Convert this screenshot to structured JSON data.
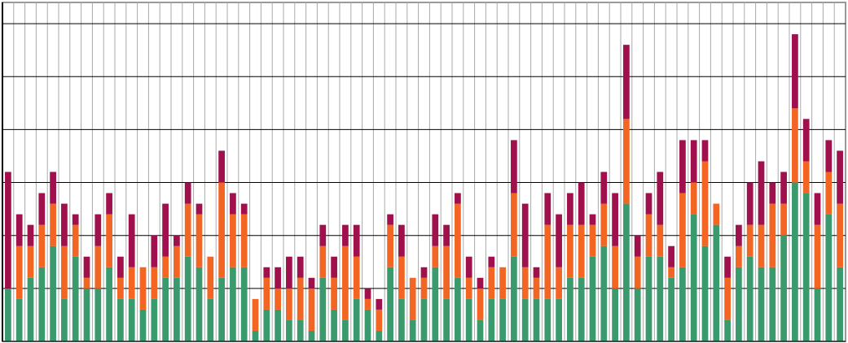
{
  "chart_data": {
    "type": "stacked-bar",
    "series": [
      {
        "color": "#3a9a6e",
        "values": [
          5,
          4,
          6,
          7,
          9,
          4,
          8,
          5,
          5,
          7,
          4,
          4,
          3,
          4,
          6,
          6,
          8,
          7,
          4,
          6,
          7,
          7,
          1,
          3,
          3,
          2,
          2,
          1,
          6,
          3,
          2,
          4,
          3,
          1,
          7,
          4,
          2,
          4,
          7,
          4,
          6,
          4,
          2,
          4,
          4,
          8,
          4,
          4,
          4,
          4,
          6,
          6,
          8,
          9,
          5,
          13,
          5,
          8,
          8,
          6,
          7,
          12,
          9,
          11,
          2,
          7,
          8,
          7,
          7,
          10,
          15,
          14,
          5,
          12,
          7
        ]
      },
      {
        "color": "#f26522",
        "values": [
          0,
          5,
          3,
          4,
          4,
          5,
          3,
          1,
          4,
          5,
          2,
          3,
          4,
          3,
          2,
          3,
          5,
          5,
          4,
          9,
          5,
          5,
          3,
          3,
          2,
          3,
          4,
          4,
          3,
          3,
          7,
          4,
          1,
          2,
          4,
          4,
          4,
          2,
          2,
          5,
          7,
          2,
          3,
          3,
          3,
          6,
          3,
          2,
          7,
          3,
          5,
          5,
          3,
          4,
          4,
          8,
          3,
          4,
          3,
          1,
          7,
          3,
          8,
          2,
          4,
          2,
          3,
          4,
          6,
          3,
          7,
          3,
          6,
          4,
          6
        ]
      },
      {
        "color": "#a0104c",
        "values": [
          11,
          3,
          2,
          3,
          3,
          4,
          1,
          2,
          3,
          2,
          2,
          5,
          0,
          3,
          5,
          1,
          2,
          1,
          0,
          3,
          2,
          1,
          0,
          1,
          2,
          3,
          2,
          1,
          2,
          2,
          2,
          3,
          1,
          1,
          1,
          3,
          0,
          1,
          3,
          2,
          1,
          2,
          1,
          1,
          0,
          5,
          6,
          1,
          3,
          5,
          3,
          4,
          1,
          3,
          5,
          7,
          2,
          2,
          5,
          2,
          5,
          4,
          2,
          0,
          2,
          2,
          4,
          6,
          2,
          3,
          7,
          4,
          3,
          3,
          5
        ]
      }
    ],
    "ylim": [
      0,
      32
    ],
    "yticks": [
      0,
      5,
      10,
      15,
      20,
      25,
      30
    ],
    "grid": true
  }
}
